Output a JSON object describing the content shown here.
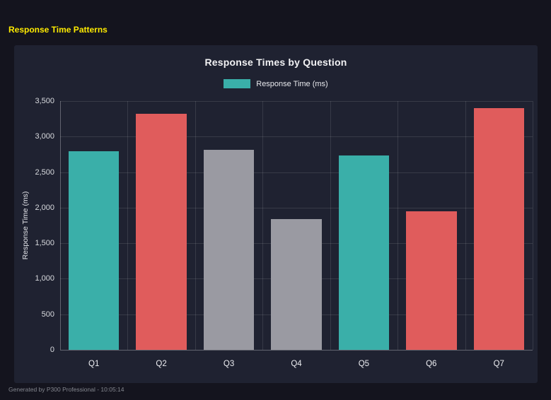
{
  "page": {
    "title": "Response Time Patterns",
    "footer": "Generated by P300 Professional - 10:05:14"
  },
  "colors": {
    "background": "#14141e",
    "panel": "#1f2231",
    "accent_yellow": "#ffeb00",
    "teal": "#3aafa9",
    "red": "#e05c5c",
    "gray": "#9a9aa2",
    "grid": "rgba(255,255,255,0.11)",
    "text": "#f2f2f4",
    "footer_text": "#84878f"
  },
  "chart_data": {
    "type": "bar",
    "title": "Response Times by Question",
    "legend": [
      {
        "label": "Response Time (ms)",
        "color": "#3aafa9"
      }
    ],
    "legend_position": "top",
    "categories": [
      "Q1",
      "Q2",
      "Q3",
      "Q4",
      "Q5",
      "Q6",
      "Q7"
    ],
    "values": [
      2790,
      3320,
      2810,
      1840,
      2730,
      1950,
      3400
    ],
    "bar_colors": [
      "#3aafa9",
      "#e05c5c",
      "#9a9aa2",
      "#9a9aa2",
      "#3aafa9",
      "#e05c5c",
      "#e05c5c"
    ],
    "xlabel": "",
    "ylabel": "Response Time (ms)",
    "ylim": [
      0,
      3500
    ],
    "yticks": [
      0,
      500,
      1000,
      1500,
      2000,
      2500,
      3000,
      3500
    ],
    "ytick_labels": [
      "0",
      "500",
      "1,000",
      "1,500",
      "2,000",
      "2,500",
      "3,000",
      "3,500"
    ],
    "grid": true,
    "bar_width_fraction": 0.75
  }
}
